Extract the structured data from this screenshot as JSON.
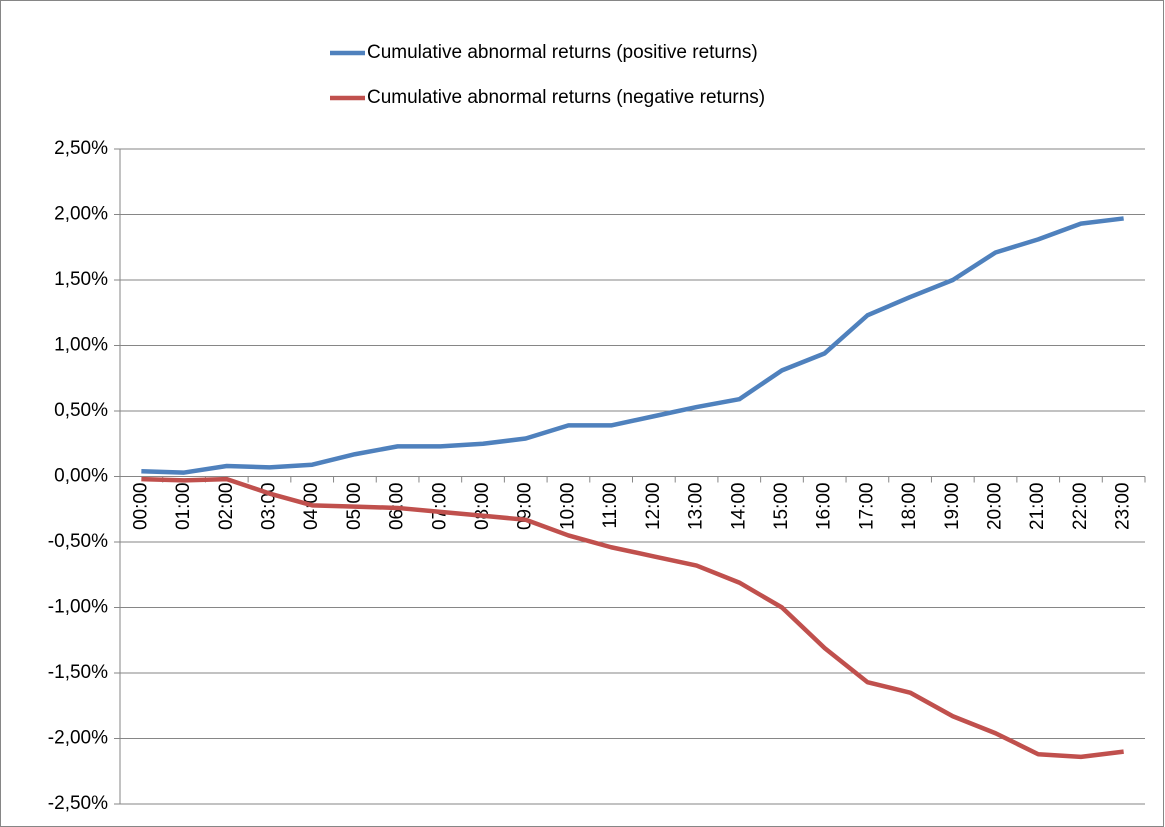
{
  "chart_data": {
    "type": "line",
    "categories": [
      "00:00",
      "01:00",
      "02:00",
      "03:00",
      "04:00",
      "05:00",
      "06:00",
      "07:00",
      "08:00",
      "09:00",
      "10:00",
      "11:00",
      "12:00",
      "13:00",
      "14:00",
      "15:00",
      "16:00",
      "17:00",
      "18:00",
      "19:00",
      "20:00",
      "21:00",
      "22:00",
      "23:00"
    ],
    "series": [
      {
        "name": "Cumulative abnormal returns (positive returns)",
        "color": "#4f81bd",
        "values": [
          0.04,
          0.03,
          0.08,
          0.07,
          0.09,
          0.17,
          0.23,
          0.23,
          0.25,
          0.29,
          0.39,
          0.39,
          0.46,
          0.53,
          0.59,
          0.81,
          0.94,
          1.23,
          1.37,
          1.5,
          1.71,
          1.81,
          1.93,
          1.97
        ]
      },
      {
        "name": "Cumulative abnormal returns (negative returns)",
        "color": "#c0504d",
        "values": [
          -0.02,
          -0.03,
          -0.02,
          -0.13,
          -0.22,
          -0.23,
          -0.24,
          -0.27,
          -0.3,
          -0.33,
          -0.45,
          -0.54,
          -0.61,
          -0.68,
          -0.81,
          -1.0,
          -1.31,
          -1.57,
          -1.65,
          -1.83,
          -1.96,
          -2.12,
          -2.14,
          -2.1
        ]
      }
    ],
    "ylim": [
      -2.5,
      2.5
    ],
    "yticks": [
      {
        "value": -2.5,
        "label": "-2,50%"
      },
      {
        "value": -2.0,
        "label": "-2,00%"
      },
      {
        "value": -1.5,
        "label": "-1,50%"
      },
      {
        "value": -1.0,
        "label": "-1,00%"
      },
      {
        "value": -0.5,
        "label": "-0,50%"
      },
      {
        "value": 0,
        "label": "0,00%"
      },
      {
        "value": 0.5,
        "label": "0,50%"
      },
      {
        "value": 1.0,
        "label": "1,00%"
      },
      {
        "value": 1.5,
        "label": "1,50%"
      },
      {
        "value": 2.0,
        "label": "2,00%"
      },
      {
        "value": 2.5,
        "label": "2,50%"
      }
    ],
    "grid": true,
    "legend": "top"
  }
}
